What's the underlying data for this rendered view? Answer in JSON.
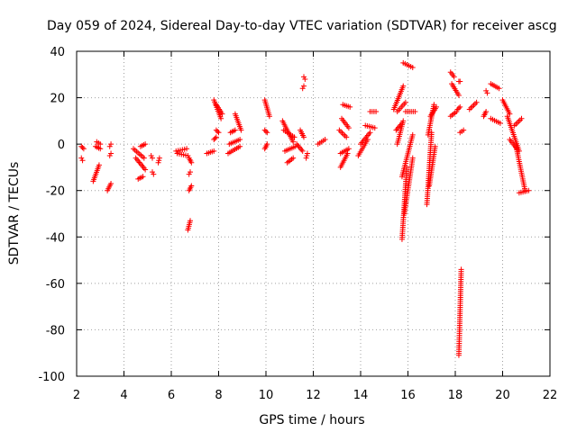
{
  "chart_data": {
    "type": "scatter",
    "title": "Day 059 of 2024, Sidereal Day-to-day VTEC variation (SDTVAR) for receiver ascg",
    "xlabel": "GPS time / hours",
    "ylabel": "SDTVAR / TECUs",
    "xlim": [
      2,
      22
    ],
    "ylim": [
      -100,
      40
    ],
    "xticks": [
      "2",
      "4",
      "6",
      "8",
      "10",
      "12",
      "14",
      "16",
      "18",
      "20",
      "22"
    ],
    "yticks": [
      "-100",
      "-80",
      "-60",
      "-40",
      "-20",
      "0",
      "20",
      "40"
    ],
    "x_tick_values": [
      2,
      4,
      6,
      8,
      10,
      12,
      14,
      16,
      18,
      20,
      22
    ],
    "y_tick_values": [
      -100,
      -80,
      -60,
      -40,
      -20,
      0,
      20,
      40
    ],
    "grid": true,
    "marker": "+",
    "marker_color": "#ff0000",
    "series": [
      {
        "name": "SDTVAR",
        "segments": [
          [
            2.2,
            -1,
            2.3,
            -2
          ],
          [
            2.2,
            -6,
            2.25,
            -7
          ],
          [
            2.7,
            -16,
            2.95,
            -9
          ],
          [
            2.8,
            -1,
            3.0,
            -2
          ],
          [
            2.85,
            1,
            3.0,
            0
          ],
          [
            3.3,
            -20,
            3.45,
            -17
          ],
          [
            3.4,
            -5,
            3.45,
            -4
          ],
          [
            3.4,
            -1,
            3.45,
            0
          ],
          [
            4.4,
            -2,
            4.85,
            -6
          ],
          [
            4.5,
            -6,
            4.9,
            -11
          ],
          [
            4.6,
            -15,
            4.8,
            -14
          ],
          [
            4.7,
            -1,
            4.9,
            0
          ],
          [
            5.15,
            -5,
            5.2,
            -6
          ],
          [
            5.2,
            -12,
            5.25,
            -13
          ],
          [
            5.45,
            -8,
            5.5,
            -6
          ],
          [
            6.2,
            -3,
            6.65,
            -2
          ],
          [
            6.25,
            -4,
            6.7,
            -5
          ],
          [
            6.7,
            -37,
            6.8,
            -33
          ],
          [
            6.75,
            -20,
            6.85,
            -18
          ],
          [
            6.75,
            -13,
            6.8,
            -12
          ],
          [
            6.75,
            -6,
            6.85,
            -8
          ],
          [
            7.5,
            -4,
            7.8,
            -3
          ],
          [
            7.8,
            2,
            7.9,
            3
          ],
          [
            7.8,
            19,
            8.1,
            11
          ],
          [
            7.9,
            17,
            8.15,
            13
          ],
          [
            7.9,
            6,
            8.0,
            5
          ],
          [
            8.4,
            -4,
            8.9,
            -1
          ],
          [
            8.45,
            0,
            8.9,
            2
          ],
          [
            8.5,
            5,
            8.7,
            6
          ],
          [
            8.7,
            13,
            8.95,
            6
          ],
          [
            9.95,
            -2,
            10.05,
            0
          ],
          [
            9.95,
            19,
            10.15,
            12
          ],
          [
            9.95,
            6,
            10.05,
            5
          ],
          [
            10.7,
            10,
            11.15,
            1
          ],
          [
            10.75,
            6,
            11.2,
            3
          ],
          [
            10.8,
            -3,
            11.25,
            -1
          ],
          [
            10.9,
            -8,
            11.15,
            -6
          ],
          [
            11.3,
            0,
            11.55,
            -3
          ],
          [
            11.45,
            6,
            11.6,
            3
          ],
          [
            11.55,
            24,
            11.6,
            25
          ],
          [
            11.6,
            29,
            11.65,
            28
          ],
          [
            11.7,
            -6,
            11.75,
            -4
          ],
          [
            12.2,
            0,
            12.5,
            2
          ],
          [
            13.1,
            6,
            13.4,
            3
          ],
          [
            13.15,
            -10,
            13.45,
            -4
          ],
          [
            13.15,
            -4,
            13.5,
            -2
          ],
          [
            13.2,
            11,
            13.5,
            7
          ],
          [
            13.25,
            17,
            13.55,
            16
          ],
          [
            13.9,
            -5,
            14.3,
            2
          ],
          [
            14.0,
            0,
            14.4,
            5
          ],
          [
            14.2,
            8,
            14.6,
            7
          ],
          [
            14.4,
            14,
            14.65,
            14
          ],
          [
            15.4,
            15,
            15.8,
            25
          ],
          [
            15.5,
            6,
            15.75,
            9
          ],
          [
            15.55,
            0,
            15.8,
            10
          ],
          [
            15.55,
            14,
            15.9,
            18
          ],
          [
            15.75,
            -41,
            15.95,
            -10
          ],
          [
            15.75,
            -14,
            16.2,
            4
          ],
          [
            15.8,
            35,
            16.2,
            33
          ],
          [
            15.85,
            -30,
            16.2,
            -6
          ],
          [
            15.9,
            14,
            16.3,
            14
          ],
          [
            16.8,
            -26,
            17.0,
            5
          ],
          [
            16.85,
            4,
            17.1,
            17
          ],
          [
            16.9,
            -18,
            17.15,
            -1
          ],
          [
            16.95,
            12,
            17.2,
            16
          ],
          [
            17.8,
            12,
            18.05,
            14
          ],
          [
            17.8,
            31,
            17.95,
            29
          ],
          [
            17.85,
            26,
            18.15,
            21
          ],
          [
            18.1,
            15,
            18.2,
            16
          ],
          [
            18.15,
            27,
            18.2,
            27
          ],
          [
            18.2,
            5,
            18.35,
            6
          ],
          [
            18.6,
            15,
            18.9,
            18
          ],
          [
            19.2,
            12,
            19.3,
            14
          ],
          [
            19.3,
            23,
            19.35,
            22
          ],
          [
            19.5,
            26,
            19.85,
            24
          ],
          [
            19.5,
            11,
            19.9,
            9
          ],
          [
            20.0,
            19,
            20.3,
            13
          ],
          [
            20.2,
            12,
            20.7,
            -3
          ],
          [
            20.3,
            2,
            20.6,
            -2
          ],
          [
            20.5,
            8,
            20.8,
            11
          ],
          [
            20.55,
            0,
            20.95,
            -20
          ],
          [
            20.7,
            -21,
            21.1,
            -20
          ],
          [
            18.15,
            -91,
            18.25,
            -54
          ]
        ]
      }
    ]
  }
}
